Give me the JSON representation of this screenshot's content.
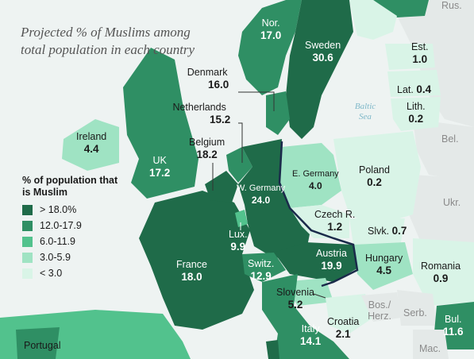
{
  "title": "Projected % of Muslims among total population in each country",
  "legend": {
    "heading": "% of population that is Muslim",
    "items": [
      {
        "label": "> 18.0%",
        "color": "#1f6b49"
      },
      {
        "label": "12.0-17.9",
        "color": "#2f8f64"
      },
      {
        "label": "6.0-11.9",
        "color": "#52c28d"
      },
      {
        "label": "3.0-5.9",
        "color": "#9fe3c3"
      },
      {
        "label": "< 3.0",
        "color": "#d9f4e7"
      }
    ]
  },
  "seas": {
    "baltic": "Baltic Sea"
  },
  "countries": {
    "norway": {
      "name": "Nor.",
      "value": "17.0"
    },
    "sweden": {
      "name": "Sweden",
      "value": "30.6"
    },
    "russia": {
      "name": "Rus."
    },
    "estonia": {
      "name": "Est.",
      "value": "1.0"
    },
    "latvia": {
      "name": "Lat.",
      "value": "0.4"
    },
    "lithuania": {
      "name": "Lith.",
      "value": "0.2"
    },
    "belarus": {
      "name": "Bel."
    },
    "denmark": {
      "name": "Denmark",
      "value": "16.0"
    },
    "netherlands": {
      "name": "Netherlands",
      "value": "15.2"
    },
    "belgium": {
      "name": "Belgium",
      "value": "18.2"
    },
    "ireland": {
      "name": "Ireland",
      "value": "4.4"
    },
    "uk": {
      "name": "UK",
      "value": "17.2"
    },
    "e_germany": {
      "name": "E. Germany",
      "value": "4.0"
    },
    "w_germany": {
      "name": "W. Germany",
      "value": "24.0"
    },
    "poland": {
      "name": "Poland",
      "value": "0.2"
    },
    "ukraine": {
      "name": "Ukr."
    },
    "czech": {
      "name": "Czech R.",
      "value": "1.2"
    },
    "slovakia": {
      "name": "Slvk.",
      "value": "0.7"
    },
    "luxembourg": {
      "name": "Lux.",
      "value": "9.9"
    },
    "france": {
      "name": "France",
      "value": "18.0"
    },
    "switzerland": {
      "name": "Switz.",
      "value": "12.9"
    },
    "austria": {
      "name": "Austria",
      "value": "19.9"
    },
    "hungary": {
      "name": "Hungary",
      "value": "4.5"
    },
    "romania": {
      "name": "Romania",
      "value": "0.9"
    },
    "slovenia": {
      "name": "Slovenia",
      "value": "5.2"
    },
    "bosnia": {
      "name": "Bos./ Herz."
    },
    "serbia": {
      "name": "Serb."
    },
    "croatia": {
      "name": "Croatia",
      "value": "2.1"
    },
    "italy": {
      "name": "Italy",
      "value": "14.1"
    },
    "bulgaria": {
      "name": "Bul.",
      "value": "11.6"
    },
    "macedonia": {
      "name": "Mac."
    },
    "portugal": {
      "name": "Portugal"
    }
  }
}
